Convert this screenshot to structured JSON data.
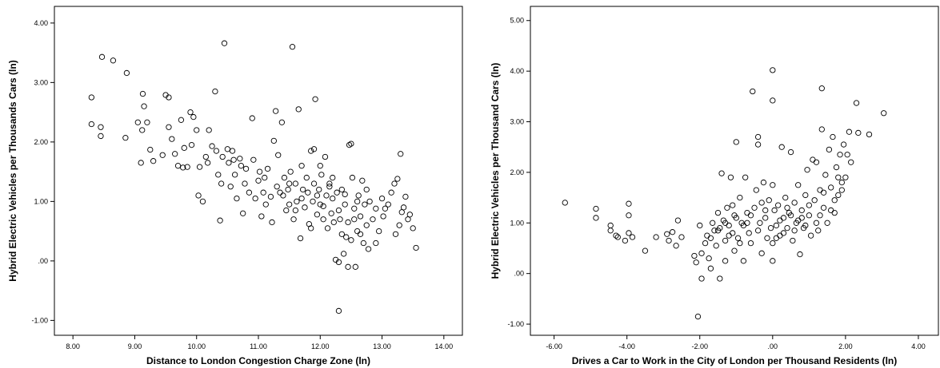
{
  "chart_data": [
    {
      "type": "scatter",
      "xlabel": "Distance to London Congestion Charge Zone (ln)",
      "ylabel": "Hybrid Electric Vehicles per Thousands Cars (ln)",
      "xlim": [
        7.7,
        14.3
      ],
      "ylim": [
        -1.25,
        4.28
      ],
      "xticks": [
        "8.00",
        "9.00",
        "10.00",
        "11.00",
        "12.00",
        "13.00",
        "14.00"
      ],
      "xtick_values": [
        8,
        9,
        10,
        11,
        12,
        13,
        14
      ],
      "yticks": [
        "-1.00",
        ".00",
        "1.00",
        "2.00",
        "3.00",
        "4.00"
      ],
      "ytick_values": [
        -1,
        0,
        1,
        2,
        3,
        4
      ],
      "grid": false,
      "marker": "hollow-circle",
      "points": [
        [
          8.3,
          2.75
        ],
        [
          8.3,
          2.3
        ],
        [
          8.45,
          2.25
        ],
        [
          8.45,
          2.1
        ],
        [
          8.47,
          3.43
        ],
        [
          8.65,
          3.37
        ],
        [
          8.85,
          2.07
        ],
        [
          8.87,
          3.16
        ],
        [
          9.05,
          2.33
        ],
        [
          9.1,
          1.65
        ],
        [
          9.12,
          2.2
        ],
        [
          9.13,
          2.81
        ],
        [
          9.15,
          2.6
        ],
        [
          9.2,
          2.33
        ],
        [
          9.25,
          1.87
        ],
        [
          9.3,
          1.68
        ],
        [
          9.45,
          1.78
        ],
        [
          9.5,
          2.79
        ],
        [
          9.55,
          2.75
        ],
        [
          9.55,
          2.25
        ],
        [
          9.6,
          2.05
        ],
        [
          9.65,
          1.8
        ],
        [
          9.7,
          1.6
        ],
        [
          9.75,
          2.37
        ],
        [
          9.78,
          1.57
        ],
        [
          9.8,
          1.9
        ],
        [
          9.85,
          1.58
        ],
        [
          9.9,
          2.5
        ],
        [
          9.92,
          1.95
        ],
        [
          9.95,
          2.42
        ],
        [
          10.0,
          2.2
        ],
        [
          10.03,
          1.1
        ],
        [
          10.05,
          1.58
        ],
        [
          10.1,
          1.0
        ],
        [
          10.15,
          1.75
        ],
        [
          10.18,
          1.65
        ],
        [
          10.2,
          2.2
        ],
        [
          10.25,
          1.93
        ],
        [
          10.3,
          2.85
        ],
        [
          10.32,
          1.85
        ],
        [
          10.35,
          1.45
        ],
        [
          10.38,
          0.68
        ],
        [
          10.4,
          1.3
        ],
        [
          10.42,
          1.75
        ],
        [
          10.45,
          3.66
        ],
        [
          10.5,
          1.88
        ],
        [
          10.52,
          1.65
        ],
        [
          10.55,
          1.25
        ],
        [
          10.58,
          1.85
        ],
        [
          10.6,
          1.7
        ],
        [
          10.62,
          1.45
        ],
        [
          10.65,
          1.05
        ],
        [
          10.7,
          1.72
        ],
        [
          10.72,
          1.6
        ],
        [
          10.75,
          0.8
        ],
        [
          10.78,
          1.3
        ],
        [
          10.8,
          1.55
        ],
        [
          10.85,
          1.15
        ],
        [
          10.9,
          2.4
        ],
        [
          10.92,
          1.7
        ],
        [
          10.95,
          1.05
        ],
        [
          11.0,
          1.35
        ],
        [
          11.02,
          1.5
        ],
        [
          11.05,
          0.75
        ],
        [
          11.08,
          1.15
        ],
        [
          11.1,
          1.4
        ],
        [
          11.12,
          0.95
        ],
        [
          11.15,
          1.55
        ],
        [
          11.2,
          1.08
        ],
        [
          11.22,
          0.65
        ],
        [
          11.25,
          2.02
        ],
        [
          11.28,
          2.52
        ],
        [
          11.3,
          1.25
        ],
        [
          11.32,
          1.78
        ],
        [
          11.35,
          1.15
        ],
        [
          11.38,
          2.33
        ],
        [
          11.4,
          1.1
        ],
        [
          11.42,
          1.4
        ],
        [
          11.45,
          0.85
        ],
        [
          11.48,
          1.2
        ],
        [
          11.5,
          0.95
        ],
        [
          11.52,
          1.5
        ],
        [
          11.55,
          3.6
        ],
        [
          11.57,
          0.7
        ],
        [
          11.6,
          1.3
        ],
        [
          11.62,
          1.0
        ],
        [
          11.65,
          2.55
        ],
        [
          11.68,
          0.38
        ],
        [
          11.7,
          1.6
        ],
        [
          11.72,
          1.2
        ],
        [
          11.75,
          0.9
        ],
        [
          11.78,
          1.4
        ],
        [
          11.8,
          1.15
        ],
        [
          11.82,
          0.62
        ],
        [
          11.85,
          1.85
        ],
        [
          11.88,
          1.0
        ],
        [
          11.9,
          1.88
        ],
        [
          11.92,
          2.72
        ],
        [
          11.95,
          0.78
        ],
        [
          11.98,
          1.2
        ],
        [
          12.0,
          1.6
        ],
        [
          12.02,
          1.45
        ],
        [
          12.05,
          0.92
        ],
        [
          12.08,
          1.75
        ],
        [
          12.1,
          1.1
        ],
        [
          12.12,
          0.55
        ],
        [
          12.15,
          1.3
        ],
        [
          12.18,
          0.8
        ],
        [
          12.2,
          1.05
        ],
        [
          12.22,
          0.65
        ],
        [
          12.25,
          0.02
        ],
        [
          12.27,
          1.15
        ],
        [
          12.3,
          -0.84
        ],
        [
          12.3,
          -0.02
        ],
        [
          12.32,
          0.7
        ],
        [
          12.35,
          1.2
        ],
        [
          12.38,
          0.12
        ],
        [
          12.4,
          0.95
        ],
        [
          12.42,
          0.4
        ],
        [
          12.45,
          -0.1
        ],
        [
          12.47,
          1.95
        ],
        [
          12.5,
          1.97
        ],
        [
          12.52,
          1.4
        ],
        [
          12.55,
          0.88
        ],
        [
          12.57,
          -0.1
        ],
        [
          12.6,
          0.5
        ],
        [
          12.62,
          1.1
        ],
        [
          12.65,
          0.75
        ],
        [
          12.68,
          1.35
        ],
        [
          12.7,
          0.3
        ],
        [
          12.72,
          0.95
        ],
        [
          12.75,
          0.6
        ],
        [
          12.78,
          0.2
        ],
        [
          12.8,
          1.0
        ],
        [
          12.85,
          0.7
        ],
        [
          12.9,
          0.88
        ],
        [
          12.95,
          0.5
        ],
        [
          13.0,
          1.05
        ],
        [
          13.02,
          0.75
        ],
        [
          13.05,
          0.88
        ],
        [
          13.1,
          0.95
        ],
        [
          13.15,
          1.15
        ],
        [
          13.2,
          1.3
        ],
        [
          13.22,
          0.45
        ],
        [
          13.25,
          1.38
        ],
        [
          13.28,
          0.6
        ],
        [
          13.3,
          1.8
        ],
        [
          13.32,
          0.82
        ],
        [
          13.35,
          0.9
        ],
        [
          13.38,
          1.08
        ],
        [
          13.42,
          0.7
        ],
        [
          13.45,
          0.78
        ],
        [
          13.5,
          0.55
        ],
        [
          13.55,
          0.22
        ],
        [
          11.6,
          0.85
        ],
        [
          11.9,
          1.3
        ],
        [
          12.15,
          1.25
        ],
        [
          12.4,
          1.12
        ],
        [
          12.55,
          0.7
        ],
        [
          12.65,
          0.45
        ],
        [
          12.3,
          0.85
        ],
        [
          12.0,
          0.95
        ],
        [
          11.7,
          1.05
        ],
        [
          11.5,
          1.3
        ],
        [
          12.6,
          1.0
        ],
        [
          12.45,
          0.65
        ],
        [
          12.2,
          1.4
        ],
        [
          11.95,
          1.1
        ],
        [
          12.75,
          1.2
        ],
        [
          12.05,
          0.7
        ],
        [
          11.85,
          0.55
        ],
        [
          12.35,
          0.45
        ],
        [
          12.5,
          0.35
        ],
        [
          12.9,
          0.3
        ]
      ]
    },
    {
      "type": "scatter",
      "xlabel": "Drives a Car to Work in the City of London per Thousand Residents (ln)",
      "ylabel": "Hybrid Electric Vehicles per Thousand Cars (ln)",
      "xlim": [
        -6.65,
        4.55
      ],
      "ylim": [
        -1.22,
        5.28
      ],
      "xticks": [
        "-6.00",
        "-4.00",
        "-2.00",
        ".00",
        "2.00",
        "4.00"
      ],
      "xtick_values": [
        -6,
        -4,
        -2,
        0,
        2,
        4
      ],
      "yticks": [
        "-1.00",
        ".00",
        "1.00",
        "2.00",
        "3.00",
        "4.00",
        "5.00"
      ],
      "ytick_values": [
        -1,
        0,
        1,
        2,
        3,
        4,
        5
      ],
      "grid": false,
      "marker": "hollow-circle",
      "points": [
        [
          -5.7,
          1.4
        ],
        [
          -4.85,
          1.28
        ],
        [
          -4.85,
          1.1
        ],
        [
          -4.45,
          0.95
        ],
        [
          -4.45,
          0.85
        ],
        [
          -4.3,
          0.75
        ],
        [
          -4.25,
          0.72
        ],
        [
          -4.05,
          0.65
        ],
        [
          -3.95,
          1.38
        ],
        [
          -3.95,
          1.15
        ],
        [
          -3.95,
          0.8
        ],
        [
          -3.85,
          0.72
        ],
        [
          -3.5,
          0.45
        ],
        [
          -3.2,
          0.72
        ],
        [
          -2.9,
          0.78
        ],
        [
          -2.85,
          0.65
        ],
        [
          -2.75,
          0.82
        ],
        [
          -2.65,
          0.55
        ],
        [
          -2.6,
          1.05
        ],
        [
          -2.5,
          0.72
        ],
        [
          -2.15,
          0.35
        ],
        [
          -2.1,
          0.22
        ],
        [
          -2.05,
          -0.85
        ],
        [
          -2.0,
          0.95
        ],
        [
          -1.95,
          0.4
        ],
        [
          -1.95,
          -0.1
        ],
        [
          -1.85,
          0.6
        ],
        [
          -1.8,
          0.75
        ],
        [
          -1.75,
          0.3
        ],
        [
          -1.7,
          0.1
        ],
        [
          -1.65,
          1.0
        ],
        [
          -1.6,
          0.85
        ],
        [
          -1.55,
          0.55
        ],
        [
          -1.5,
          1.2
        ],
        [
          -1.45,
          0.9
        ],
        [
          -1.45,
          -0.1
        ],
        [
          -1.4,
          1.98
        ],
        [
          -1.35,
          1.05
        ],
        [
          -1.3,
          0.65
        ],
        [
          -1.3,
          0.25
        ],
        [
          -1.25,
          1.3
        ],
        [
          -1.2,
          0.95
        ],
        [
          -1.15,
          1.9
        ],
        [
          -1.1,
          0.8
        ],
        [
          -1.05,
          1.15
        ],
        [
          -1.05,
          0.45
        ],
        [
          -1.0,
          2.6
        ],
        [
          -0.95,
          0.7
        ],
        [
          -0.9,
          1.5
        ],
        [
          -0.85,
          1.0
        ],
        [
          -0.8,
          0.25
        ],
        [
          -0.75,
          1.9
        ],
        [
          -0.7,
          1.2
        ],
        [
          -0.65,
          0.8
        ],
        [
          -0.6,
          0.6
        ],
        [
          -0.55,
          3.6
        ],
        [
          -0.5,
          1.3
        ],
        [
          -0.45,
          1.65
        ],
        [
          -0.4,
          2.7
        ],
        [
          -0.4,
          2.55
        ],
        [
          -0.35,
          1.0
        ],
        [
          -0.3,
          0.4
        ],
        [
          -0.25,
          1.8
        ],
        [
          -0.2,
          1.1
        ],
        [
          -0.15,
          0.7
        ],
        [
          -0.1,
          1.45
        ],
        [
          -0.05,
          0.9
        ],
        [
          0.0,
          4.02
        ],
        [
          0.0,
          3.42
        ],
        [
          0.0,
          1.75
        ],
        [
          0.0,
          0.25
        ],
        [
          0.0,
          0.6
        ],
        [
          0.05,
          1.25
        ],
        [
          0.1,
          0.95
        ],
        [
          0.15,
          1.35
        ],
        [
          0.2,
          0.75
        ],
        [
          0.25,
          2.5
        ],
        [
          0.3,
          1.1
        ],
        [
          0.35,
          1.5
        ],
        [
          0.4,
          0.9
        ],
        [
          0.45,
          1.2
        ],
        [
          0.5,
          2.4
        ],
        [
          0.55,
          0.65
        ],
        [
          0.6,
          1.4
        ],
        [
          0.65,
          1.0
        ],
        [
          0.7,
          1.75
        ],
        [
          0.75,
          0.38
        ],
        [
          0.8,
          1.25
        ],
        [
          0.85,
          0.9
        ],
        [
          0.9,
          1.55
        ],
        [
          0.95,
          2.05
        ],
        [
          1.0,
          1.15
        ],
        [
          1.05,
          0.75
        ],
        [
          1.1,
          2.25
        ],
        [
          1.15,
          1.45
        ],
        [
          1.2,
          2.2
        ],
        [
          1.25,
          0.85
        ],
        [
          1.3,
          1.65
        ],
        [
          1.35,
          3.66
        ],
        [
          1.35,
          2.85
        ],
        [
          1.4,
          1.3
        ],
        [
          1.45,
          1.95
        ],
        [
          1.5,
          1.0
        ],
        [
          1.55,
          2.45
        ],
        [
          1.6,
          1.7
        ],
        [
          1.65,
          2.7
        ],
        [
          1.7,
          1.2
        ],
        [
          1.75,
          2.1
        ],
        [
          1.8,
          1.55
        ],
        [
          1.85,
          2.35
        ],
        [
          1.9,
          1.8
        ],
        [
          1.95,
          2.55
        ],
        [
          2.0,
          1.9
        ],
        [
          2.05,
          2.35
        ],
        [
          2.1,
          2.8
        ],
        [
          2.15,
          2.2
        ],
        [
          2.3,
          3.37
        ],
        [
          2.35,
          2.78
        ],
        [
          2.65,
          2.75
        ],
        [
          3.05,
          3.17
        ],
        [
          -1.2,
          0.75
        ],
        [
          -1.0,
          1.1
        ],
        [
          -0.8,
          0.95
        ],
        [
          -0.6,
          1.15
        ],
        [
          -0.4,
          0.85
        ],
        [
          -0.2,
          1.25
        ],
        [
          0.2,
          1.05
        ],
        [
          0.4,
          1.3
        ],
        [
          0.6,
          0.85
        ],
        [
          0.8,
          1.1
        ],
        [
          1.0,
          1.35
        ],
        [
          1.2,
          1.0
        ],
        [
          1.4,
          1.6
        ],
        [
          1.6,
          1.25
        ],
        [
          1.8,
          1.9
        ],
        [
          -1.5,
          0.85
        ],
        [
          -1.3,
          1.0
        ],
        [
          -1.7,
          0.7
        ],
        [
          -0.9,
          0.6
        ],
        [
          -0.7,
          1.0
        ],
        [
          0.3,
          0.8
        ],
        [
          0.5,
          1.15
        ],
        [
          0.7,
          1.05
        ],
        [
          1.7,
          1.45
        ],
        [
          -1.1,
          1.35
        ],
        [
          -0.3,
          1.4
        ],
        [
          0.1,
          0.7
        ],
        [
          0.9,
          0.95
        ],
        [
          1.3,
          1.15
        ],
        [
          1.9,
          1.65
        ]
      ]
    }
  ]
}
